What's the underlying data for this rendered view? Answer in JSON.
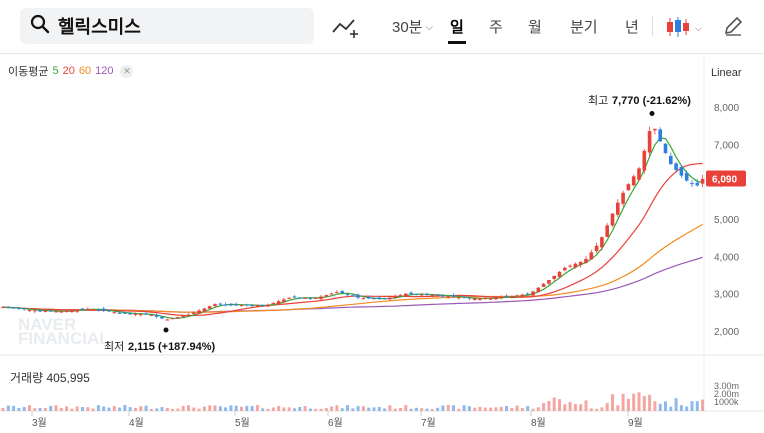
{
  "search": {
    "query": "헬릭스미스"
  },
  "toolbar": {
    "periods": [
      {
        "label": "30분",
        "dropdown": true
      },
      {
        "label": "일",
        "active": true
      },
      {
        "label": "주"
      },
      {
        "label": "월"
      },
      {
        "label": "분기"
      },
      {
        "label": "년"
      }
    ]
  },
  "indicators": {
    "ma_label": "이동평균",
    "ma_periods": [
      {
        "label": "5",
        "color": "#3aa53a"
      },
      {
        "label": "20",
        "color": "#e8413a"
      },
      {
        "label": "60",
        "color": "#f28b22"
      },
      {
        "label": "120",
        "color": "#9b59b6"
      }
    ],
    "scale_label": "Linear"
  },
  "price_chart": {
    "y_ticks": [
      "8,000",
      "7,000",
      "6,000",
      "5,000",
      "4,000",
      "3,000",
      "2,000"
    ],
    "current_price": "6,090",
    "high_annotation": {
      "label": "최고",
      "value": "7,770",
      "change": "(-21.62%)"
    },
    "low_annotation": {
      "label": "최저",
      "value": "2,115",
      "change": "(+187.94%)"
    },
    "watermark": [
      "NAVER",
      "FINANCIAL"
    ]
  },
  "volume": {
    "label": "거래량",
    "value": "405,995",
    "y_ticks": [
      "3.00m",
      "2.00m",
      "1000k"
    ]
  },
  "x_axis": {
    "months": [
      "3월",
      "4월",
      "5월",
      "6월",
      "7월",
      "8월",
      "9월"
    ]
  },
  "colors": {
    "up": "#e8413a",
    "down": "#2d7fe0",
    "ma5": "#3aa53a",
    "ma20": "#e8413a",
    "ma60": "#f28b22",
    "ma120": "#9b59b6"
  }
}
